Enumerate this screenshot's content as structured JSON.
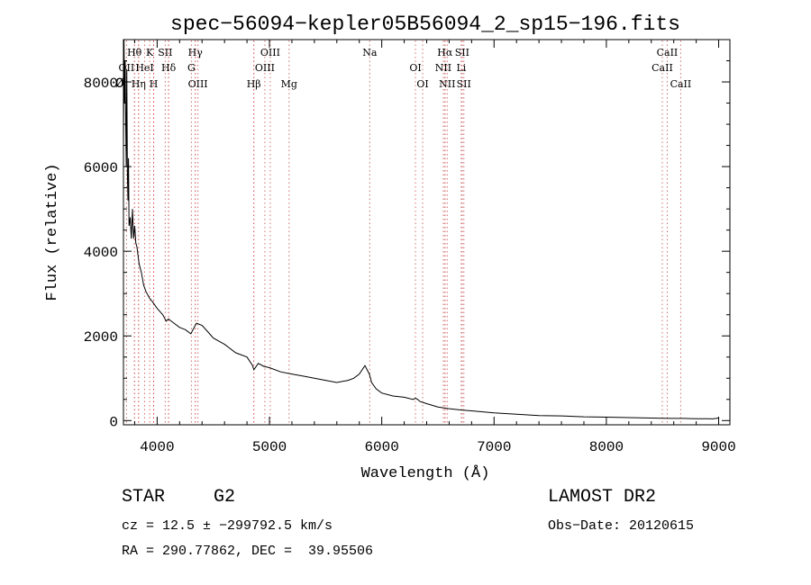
{
  "chart_data": {
    "type": "line",
    "title": "spec−56094−kepler05B56094_2_sp15−196.fits",
    "xlabel": "Wavelength (Å)",
    "ylabel": "Flux (relative)",
    "xlim": [
      3700,
      9100
    ],
    "ylim": [
      -100,
      9000
    ],
    "x_ticks": [
      4000,
      5000,
      6000,
      7000,
      8000,
      9000
    ],
    "x_tick_labels": [
      "4000",
      "5000",
      "6000",
      "7000",
      "8000",
      "9000"
    ],
    "y_ticks": [
      0,
      2000,
      4000,
      6000,
      8000
    ],
    "y_tick_labels": [
      "0",
      "2000",
      "4000",
      "6000",
      "8000"
    ],
    "y_label_overlap_glyph": "Ø",
    "grid": false,
    "spectrum": {
      "wavelength": [
        3700,
        3705,
        3710,
        3715,
        3720,
        3725,
        3730,
        3735,
        3740,
        3745,
        3750,
        3760,
        3770,
        3780,
        3790,
        3800,
        3810,
        3820,
        3830,
        3840,
        3860,
        3880,
        3900,
        3930,
        3960,
        4000,
        4050,
        4080,
        4100,
        4150,
        4200,
        4250,
        4300,
        4330,
        4350,
        4400,
        4450,
        4500,
        4600,
        4700,
        4800,
        4850,
        4861,
        4900,
        4950,
        5000,
        5100,
        5200,
        5300,
        5400,
        5500,
        5600,
        5700,
        5750,
        5800,
        5850,
        5870,
        5890,
        5910,
        5950,
        6000,
        6100,
        6200,
        6280,
        6300,
        6320,
        6340,
        6400,
        6500,
        6600,
        6700,
        6800,
        7000,
        7200,
        7400,
        7600,
        7800,
        8000,
        8200,
        8400,
        8500,
        8600,
        8700,
        8800,
        8900,
        8950,
        9000
      ],
      "flux": [
        6500,
        9000,
        7500,
        8500,
        7000,
        6000,
        8300,
        5800,
        5200,
        6200,
        4600,
        4800,
        4300,
        5000,
        4300,
        4600,
        4200,
        4100,
        3900,
        3700,
        3500,
        3200,
        3050,
        2900,
        2800,
        2650,
        2500,
        2350,
        2400,
        2300,
        2200,
        2150,
        2050,
        2200,
        2300,
        2250,
        2100,
        1950,
        1800,
        1600,
        1500,
        1300,
        1200,
        1350,
        1280,
        1250,
        1150,
        1100,
        1050,
        1000,
        950,
        900,
        950,
        1000,
        1100,
        1300,
        1200,
        1100,
        900,
        750,
        650,
        580,
        550,
        500,
        530,
        500,
        450,
        400,
        320,
        280,
        250,
        230,
        180,
        150,
        120,
        110,
        90,
        80,
        70,
        60,
        55,
        50,
        50,
        45,
        45,
        40,
        60
      ]
    },
    "lines": [
      {
        "name": "Hθ",
        "wavelength": 3798
      },
      {
        "name": "OII",
        "wavelength": 3727
      },
      {
        "name": "Hη",
        "wavelength": 3835
      },
      {
        "name": "K",
        "wavelength": 3934
      },
      {
        "name": "HeI",
        "wavelength": 3889
      },
      {
        "name": "H",
        "wavelength": 3969
      },
      {
        "name": "SII",
        "wavelength": 4072
      },
      {
        "name": "Hδ",
        "wavelength": 4102
      },
      {
        "name": "OIII",
        "wavelength": 4363
      },
      {
        "name": "Hγ",
        "wavelength": 4340
      },
      {
        "name": "G",
        "wavelength": 4305
      },
      {
        "name": "Hβ",
        "wavelength": 4861
      },
      {
        "name": "OIII",
        "wavelength": 5007
      },
      {
        "name": "OIII",
        "wavelength": 4959
      },
      {
        "name": "Mg",
        "wavelength": 5175
      },
      {
        "name": "Na",
        "wavelength": 5893
      },
      {
        "name": "OI",
        "wavelength": 6300
      },
      {
        "name": "OI",
        "wavelength": 6364
      },
      {
        "name": "Hα",
        "wavelength": 6563
      },
      {
        "name": "NII",
        "wavelength": 6548
      },
      {
        "name": "NII",
        "wavelength": 6583
      },
      {
        "name": "SII",
        "wavelength": 6716
      },
      {
        "name": "Li",
        "wavelength": 6708
      },
      {
        "name": "SII",
        "wavelength": 6731
      },
      {
        "name": "CaII",
        "wavelength": 8542
      },
      {
        "name": "CaII",
        "wavelength": 8498
      },
      {
        "name": "CaII",
        "wavelength": 8662
      }
    ]
  },
  "info": {
    "object_class": "STAR",
    "subclass": "G2",
    "survey": "LAMOST DR2",
    "redshift": "cz = 12.5 ± −299792.5 km/s",
    "obs_date": "Obs−Date: 20120615",
    "coords": "RA = 290.77862, DEC =  39.95506"
  }
}
